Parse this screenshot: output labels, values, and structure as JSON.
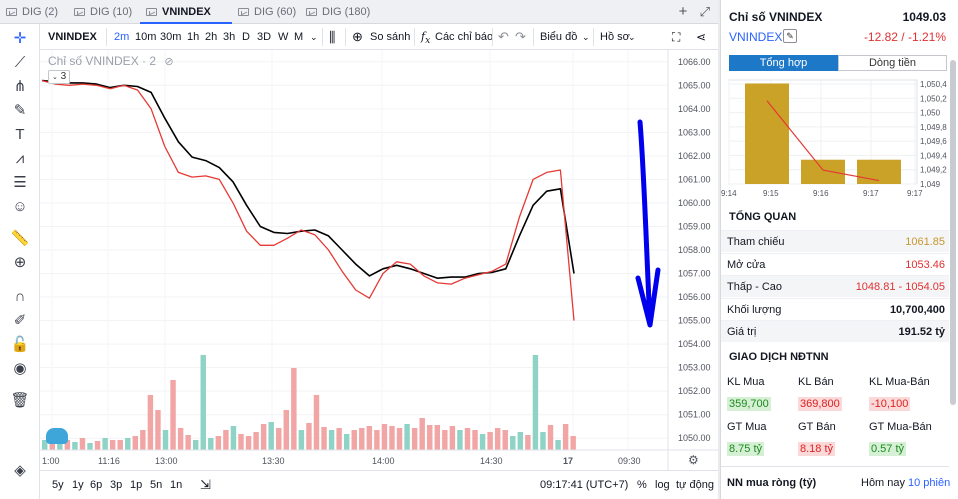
{
  "tabs": [
    {
      "label": "DIG (2)",
      "active": false
    },
    {
      "label": "DIG (10)",
      "active": false
    },
    {
      "label": "VNINDEX (2)",
      "active": true
    },
    {
      "label": "DIG (60)",
      "active": false
    },
    {
      "label": "DIG (180)",
      "active": false
    }
  ],
  "tab_close": "✕",
  "tabbar_actions": {
    "add": "+",
    "expand": "⤢"
  },
  "toolbar": {
    "symbol": "VNINDEX",
    "intervals": [
      "2m",
      "10m",
      "30m",
      "1h",
      "2h",
      "3h",
      "D",
      "3D",
      "W",
      "M"
    ],
    "active_interval": "2m",
    "compare": "So sánh",
    "indicators": "Các chỉ báo",
    "chart_type": "Biểu đồ",
    "profile": "Hồ sơ"
  },
  "legend": {
    "title": "Chỉ số VNINDEX · 2",
    "count": "3"
  },
  "chart_data": {
    "type": "line",
    "yaxis": {
      "min": 1049.5,
      "max": 1066.5,
      "ticks": [
        "1066.00",
        "1065.00",
        "1064.00",
        "1063.00",
        "1062.00",
        "1061.00",
        "1060.00",
        "1059.00",
        "1058.00",
        "1057.00",
        "1056.00",
        "1055.00",
        "1054.00",
        "1053.00",
        "1052.00",
        "1051.00",
        "1050.00"
      ]
    },
    "xaxis_labels": [
      "1:00",
      "11:16",
      "13:00",
      "13:30",
      "14:00",
      "14:30",
      "17",
      "09:30"
    ],
    "series": [
      {
        "color": "#000000",
        "values": [
          1065.2,
          1065.15,
          1065.1,
          1065.1,
          1065.05,
          1064.9,
          1065.0,
          1064.95,
          1064.7,
          1063.6,
          1062.6,
          1061.95,
          1061.8,
          1061.5,
          1060.9,
          1059.9,
          1059.0,
          1058.75,
          1058.7,
          1058.8,
          1058.85,
          1058.6,
          1058.0,
          1057.4,
          1056.9,
          1057.2,
          1057.35,
          1057.2,
          1057.0,
          1056.8,
          1056.85,
          1056.85,
          1057.0,
          1057.05,
          1057.2,
          1058.6,
          1059.9,
          1060.5,
          1060.6,
          1057.0
        ]
      },
      {
        "color": "#e53935",
        "values": [
          1065.2,
          1065.05,
          1065.0,
          1065.05,
          1065.0,
          1064.85,
          1065.0,
          1064.8,
          1064.0,
          1062.4,
          1061.3,
          1061.1,
          1061.15,
          1061.0,
          1060.0,
          1058.8,
          1058.2,
          1058.2,
          1058.5,
          1058.85,
          1058.65,
          1058.0,
          1057.1,
          1056.3,
          1055.95,
          1057.0,
          1057.5,
          1057.4,
          1056.9,
          1056.6,
          1056.55,
          1056.8,
          1056.95,
          1057.1,
          1057.4,
          1059.4,
          1061.0,
          1061.3,
          1061.4,
          1055.0
        ]
      }
    ],
    "volume_bars": [
      {
        "v": 0.1,
        "up": true
      },
      {
        "v": 0.12,
        "up": false
      },
      {
        "v": 0.08,
        "up": true
      },
      {
        "v": 0.1,
        "up": false
      },
      {
        "v": 0.08,
        "up": true
      },
      {
        "v": 0.12,
        "up": false
      },
      {
        "v": 0.07,
        "up": true
      },
      {
        "v": 0.09,
        "up": false
      },
      {
        "v": 0.12,
        "up": true
      },
      {
        "v": 0.1,
        "up": false
      },
      {
        "v": 0.1,
        "up": false
      },
      {
        "v": 0.12,
        "up": true
      },
      {
        "v": 0.14,
        "up": false
      },
      {
        "v": 0.2,
        "up": false
      },
      {
        "v": 0.55,
        "up": false
      },
      {
        "v": 0.4,
        "up": false
      },
      {
        "v": 0.2,
        "up": true
      },
      {
        "v": 0.7,
        "up": false
      },
      {
        "v": 0.22,
        "up": false
      },
      {
        "v": 0.15,
        "up": false
      },
      {
        "v": 0.1,
        "up": true
      },
      {
        "v": 0.95,
        "up": true
      },
      {
        "v": 0.12,
        "up": true
      },
      {
        "v": 0.14,
        "up": false
      },
      {
        "v": 0.2,
        "up": false
      },
      {
        "v": 0.24,
        "up": true
      },
      {
        "v": 0.16,
        "up": false
      },
      {
        "v": 0.14,
        "up": false
      },
      {
        "v": 0.18,
        "up": false
      },
      {
        "v": 0.26,
        "up": false
      },
      {
        "v": 0.28,
        "up": true
      },
      {
        "v": 0.22,
        "up": false
      },
      {
        "v": 0.4,
        "up": false
      },
      {
        "v": 0.82,
        "up": false
      },
      {
        "v": 0.2,
        "up": true
      },
      {
        "v": 0.27,
        "up": false
      },
      {
        "v": 0.55,
        "up": false
      },
      {
        "v": 0.23,
        "up": false
      },
      {
        "v": 0.2,
        "up": true
      },
      {
        "v": 0.22,
        "up": false
      },
      {
        "v": 0.16,
        "up": true
      },
      {
        "v": 0.2,
        "up": false
      },
      {
        "v": 0.22,
        "up": false
      },
      {
        "v": 0.24,
        "up": false
      },
      {
        "v": 0.2,
        "up": false
      },
      {
        "v": 0.26,
        "up": false
      },
      {
        "v": 0.24,
        "up": false
      },
      {
        "v": 0.22,
        "up": false
      },
      {
        "v": 0.26,
        "up": true
      },
      {
        "v": 0.22,
        "up": false
      },
      {
        "v": 0.32,
        "up": false
      },
      {
        "v": 0.25,
        "up": false
      },
      {
        "v": 0.25,
        "up": false
      },
      {
        "v": 0.2,
        "up": false
      },
      {
        "v": 0.24,
        "up": false
      },
      {
        "v": 0.2,
        "up": true
      },
      {
        "v": 0.22,
        "up": false
      },
      {
        "v": 0.2,
        "up": false
      },
      {
        "v": 0.16,
        "up": true
      },
      {
        "v": 0.18,
        "up": false
      },
      {
        "v": 0.22,
        "up": false
      },
      {
        "v": 0.2,
        "up": false
      },
      {
        "v": 0.14,
        "up": true
      },
      {
        "v": 0.18,
        "up": true
      },
      {
        "v": 0.15,
        "up": false
      },
      {
        "v": 0.95,
        "up": true
      },
      {
        "v": 0.18,
        "up": true
      },
      {
        "v": 0.25,
        "up": false
      },
      {
        "v": 0.1,
        "up": true
      },
      {
        "v": 0.26,
        "up": false
      },
      {
        "v": 0.14,
        "up": false
      }
    ]
  },
  "bottom": {
    "ranges": [
      "5y",
      "1y",
      "6p",
      "3p",
      "1p",
      "5n",
      "1n"
    ],
    "clock": "09:17:41 (UTC+7)",
    "percent": "%",
    "log": "log",
    "auto": "tự động"
  },
  "panel": {
    "title": "Chỉ số VNINDEX",
    "price": "1049.03",
    "symbol": "VNINDEX",
    "change": "-12.82 / -1.21%",
    "tab_summary": "Tổng hợp",
    "tab_flow": "Dòng tiền",
    "mini_chart": {
      "type": "bar",
      "categories": [
        "9:15",
        "9:16",
        "9:17"
      ],
      "values": [
        1050.45,
        1049.35,
        1049.35
      ],
      "line_values": [
        1050.2,
        1049.2,
        1049.05
      ],
      "x_ticks": [
        "9:14",
        "9:15",
        "9:16",
        "9:17",
        "9:17"
      ],
      "y_ticks": [
        "1,050,4",
        "1,050,2",
        "1,050",
        "1,049,8",
        "1,049,6",
        "1,049,4",
        "1,049,2",
        "1,049"
      ],
      "ylim": [
        1049,
        1050.5
      ]
    },
    "overview_title": "TỔNG QUAN",
    "overview": [
      {
        "k": "Tham chiếu",
        "v": "1061.85",
        "color": "#c89632"
      },
      {
        "k": "Mở cửa",
        "v": "1053.46",
        "color": "#e03131"
      },
      {
        "k": "Thấp - Cao",
        "v": "1048.81 - 1054.05",
        "color": "#e03131"
      },
      {
        "k": "Khối lượng",
        "v": "10,700,400",
        "color": "#131722"
      },
      {
        "k": "Giá trị",
        "v": "191.52 tỷ",
        "color": "#131722"
      }
    ],
    "foreign_title": "GIAO DỊCH NĐTNN",
    "foreign_headers": [
      "KL Mua",
      "KL Bán",
      "KL Mua-Bán"
    ],
    "foreign_values": [
      "359,700",
      "369,800",
      "-10,100"
    ],
    "value_headers": [
      "GT Mua",
      "GT Bán",
      "GT Mua-Bán"
    ],
    "value_values": [
      "8.75 tỷ",
      "8.18 tỷ",
      "0.57 tỷ"
    ],
    "net_label": "NN mua ròng (tỷ)",
    "today": "Hôm nay",
    "sessions": "10 phiên"
  }
}
